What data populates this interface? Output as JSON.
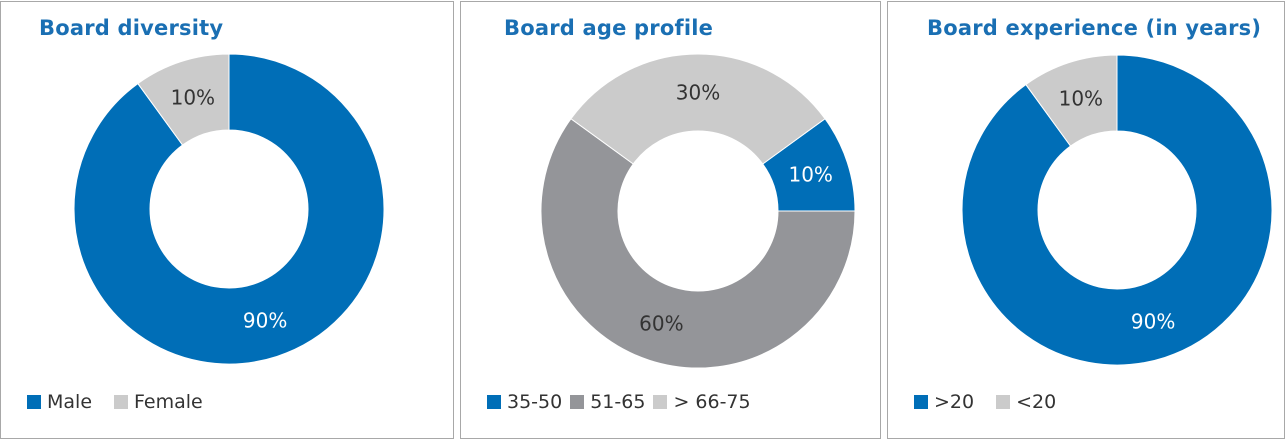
{
  "chart_data": [
    {
      "type": "pie",
      "variant": "donut",
      "title": "Board diversity",
      "categories": [
        "Male",
        "Female"
      ],
      "values": [
        90,
        10
      ],
      "labels": [
        "90%",
        "10%"
      ],
      "colors": [
        "#006eb7",
        "#cbcbcb"
      ],
      "label_colors": [
        "#ffffff",
        "#333333"
      ],
      "legend": [
        "Male",
        "Female"
      ],
      "legend_position": "bottom-left"
    },
    {
      "type": "pie",
      "variant": "donut",
      "title": "Board age profile",
      "categories": [
        "35-50",
        "51-65",
        "> 66-75"
      ],
      "values": [
        10,
        60,
        30
      ],
      "labels": [
        "10%",
        "60%",
        "30%"
      ],
      "colors": [
        "#006eb7",
        "#949599",
        "#cbcbcb"
      ],
      "label_colors": [
        "#ffffff",
        "#333333",
        "#333333"
      ],
      "legend": [
        "35-50",
        "51-65",
        "> 66-75"
      ],
      "legend_position": "bottom-left"
    },
    {
      "type": "pie",
      "variant": "donut",
      "title": "Board experience (in years)",
      "categories": [
        ">20",
        "<20"
      ],
      "values": [
        90,
        10
      ],
      "labels": [
        "90%",
        "10%"
      ],
      "colors": [
        "#006eb7",
        "#cbcbcb"
      ],
      "label_colors": [
        "#ffffff",
        "#333333"
      ],
      "legend": [
        ">20",
        "<20"
      ],
      "legend_position": "bottom-left"
    }
  ]
}
